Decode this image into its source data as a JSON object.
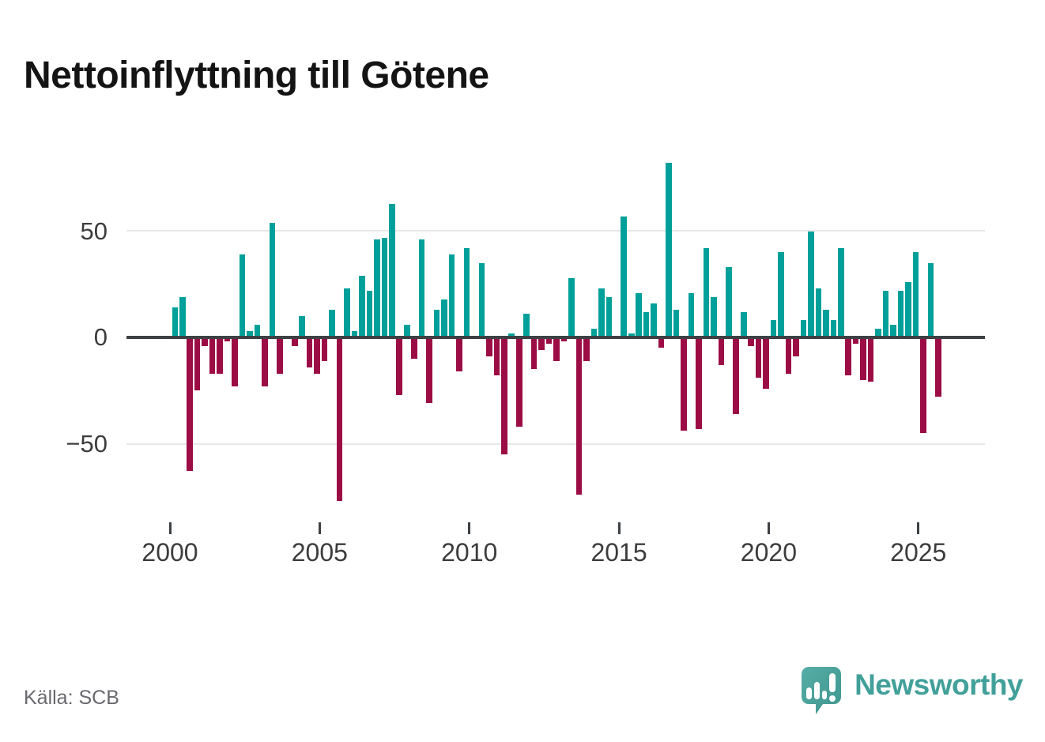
{
  "title": "Nettoinflyttning till Götene",
  "source": "Källa: SCB",
  "branding": {
    "name": "Newsworthy",
    "icon": "newsworthy-speech-bubble-chart-icon"
  },
  "colors": {
    "positive_bar": "#00a09a",
    "negative_bar": "#9c0d45",
    "axis_line": "#3d4144",
    "gridline": "#e7e7e7",
    "tick_text": "#3c3c3c",
    "title_text": "#141414",
    "source_text": "#68686e",
    "brand_teal": "#41a09a"
  },
  "chart_data": {
    "type": "bar",
    "title": "Nettoinflyttning till Götene",
    "xlabel": "",
    "ylabel": "",
    "legend": "none",
    "grid": "horizontal gridlines at 50 and -50; dark zero axis line",
    "ylim": [
      -85,
      90
    ],
    "y_ticks": [
      50,
      0,
      -50
    ],
    "y_tick_labels": [
      "50",
      "0",
      "−50"
    ],
    "x_tick_years": [
      2000,
      2005,
      2010,
      2015,
      2020,
      2025
    ],
    "x_tick_labels": [
      "2000",
      "2005",
      "2010",
      "2015",
      "2020",
      "2025"
    ],
    "categories": [
      "2000Q1",
      "2000Q2",
      "2000Q3",
      "2000Q4",
      "2001Q1",
      "2001Q2",
      "2001Q3",
      "2001Q4",
      "2002Q1",
      "2002Q2",
      "2002Q3",
      "2002Q4",
      "2003Q1",
      "2003Q2",
      "2003Q3",
      "2003Q4",
      "2004Q1",
      "2004Q2",
      "2004Q3",
      "2004Q4",
      "2005Q1",
      "2005Q2",
      "2005Q3",
      "2005Q4",
      "2006Q1",
      "2006Q2",
      "2006Q3",
      "2006Q4",
      "2007Q1",
      "2007Q2",
      "2007Q3",
      "2007Q4",
      "2008Q1",
      "2008Q2",
      "2008Q3",
      "2008Q4",
      "2009Q1",
      "2009Q2",
      "2009Q3",
      "2009Q4",
      "2010Q1",
      "2010Q2",
      "2010Q3",
      "2010Q4",
      "2011Q1",
      "2011Q2",
      "2011Q3",
      "2011Q4",
      "2012Q1",
      "2012Q2",
      "2012Q3",
      "2012Q4",
      "2013Q1",
      "2013Q2",
      "2013Q3",
      "2013Q4",
      "2014Q1",
      "2014Q2",
      "2014Q3",
      "2014Q4",
      "2015Q1",
      "2015Q2",
      "2015Q3",
      "2015Q4",
      "2016Q1",
      "2016Q2",
      "2016Q3",
      "2016Q4",
      "2017Q1",
      "2017Q2",
      "2017Q3",
      "2017Q4",
      "2018Q1",
      "2018Q2",
      "2018Q3",
      "2018Q4",
      "2019Q1",
      "2019Q2",
      "2019Q3",
      "2019Q4",
      "2020Q1",
      "2020Q2",
      "2020Q3",
      "2020Q4",
      "2021Q1",
      "2021Q2",
      "2021Q3",
      "2021Q4",
      "2022Q1",
      "2022Q2",
      "2022Q3",
      "2022Q4",
      "2023Q1",
      "2023Q2",
      "2023Q3",
      "2023Q4",
      "2024Q1",
      "2024Q2",
      "2024Q3",
      "2024Q4",
      "2025Q1",
      "2025Q2",
      "2025Q3"
    ],
    "values": [
      14,
      19,
      -63,
      -25,
      -4,
      -17,
      -17,
      -2,
      -23,
      39,
      3,
      6,
      -23,
      54,
      -17,
      0,
      -4,
      10,
      -14,
      -17,
      -11,
      13,
      -77,
      23,
      3,
      29,
      22,
      46,
      47,
      63,
      -27,
      6,
      -10,
      46,
      -31,
      13,
      18,
      39,
      -16,
      42,
      0,
      35,
      -9,
      -18,
      -55,
      2,
      -42,
      11,
      -15,
      -6,
      -3,
      -11,
      -2,
      28,
      -74,
      -11,
      4,
      23,
      19,
      0,
      57,
      2,
      21,
      12,
      16,
      -5,
      82,
      13,
      -44,
      21,
      -43,
      42,
      19,
      -13,
      33,
      -36,
      12,
      -4,
      -19,
      -24,
      8,
      40,
      -17,
      -9,
      8,
      50,
      23,
      13,
      8,
      42,
      -18,
      -3,
      -20,
      -21,
      4,
      22,
      6,
      22,
      26,
      40,
      -45,
      35,
      -28
    ]
  }
}
